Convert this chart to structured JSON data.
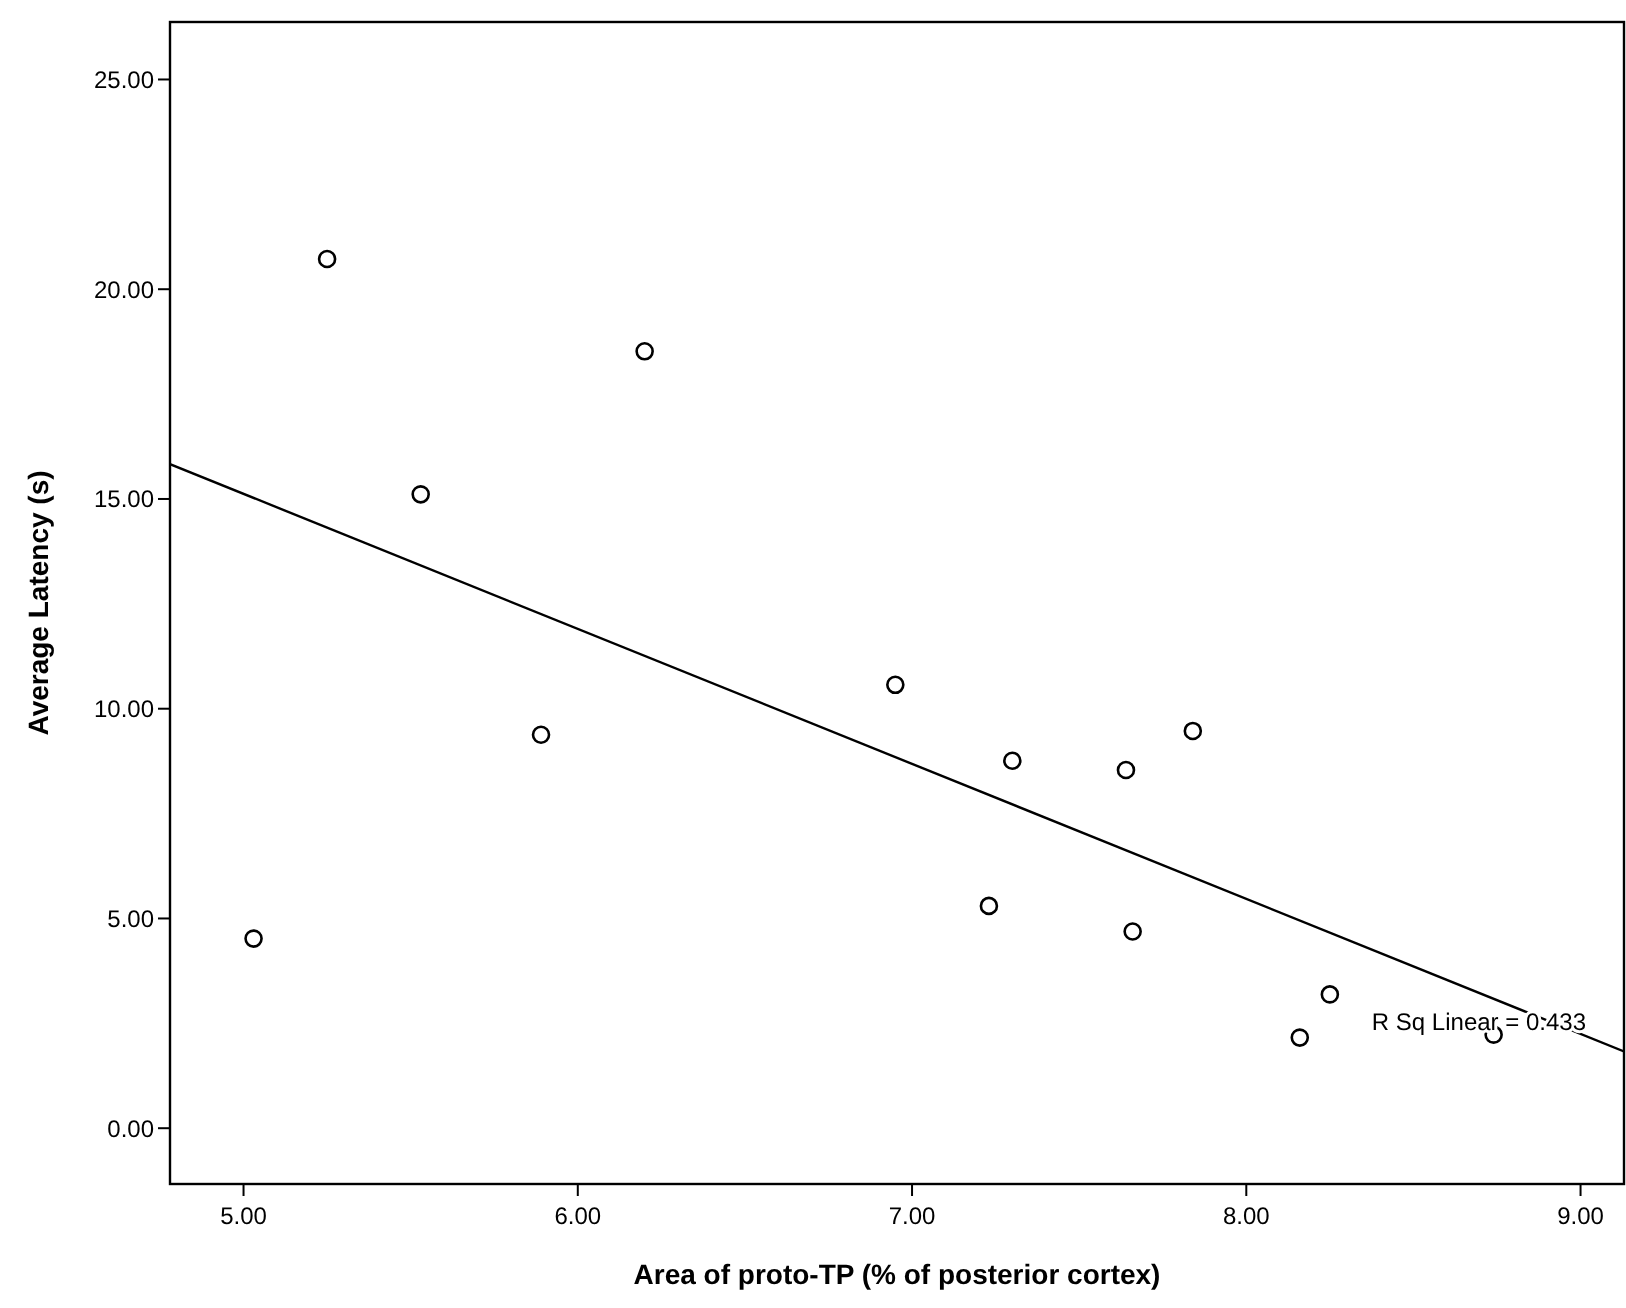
{
  "chart_data": {
    "type": "scatter",
    "xlabel": "Area of proto-TP (% of posterior cortex)",
    "ylabel": "Average Latency (s)",
    "xlim": [
      4.78,
      9.13
    ],
    "ylim": [
      -1.33,
      26.37
    ],
    "xticks": [
      {
        "value": 5,
        "label": "5.00"
      },
      {
        "value": 6,
        "label": "6.00"
      },
      {
        "value": 7,
        "label": "7.00"
      },
      {
        "value": 8,
        "label": "8.00"
      },
      {
        "value": 9,
        "label": "9.00"
      }
    ],
    "yticks": [
      {
        "value": 0,
        "label": "0.00"
      },
      {
        "value": 5,
        "label": "5.00"
      },
      {
        "value": 10,
        "label": "10.00"
      },
      {
        "value": 15,
        "label": "15.00"
      },
      {
        "value": 20,
        "label": "20.00"
      },
      {
        "value": 25,
        "label": "25.00"
      }
    ],
    "grid": false,
    "series": [
      {
        "marker": "circle",
        "color": "#000000",
        "x": [
          5.25,
          6.2,
          5.53,
          5.89,
          5.03,
          6.95,
          7.3,
          7.23,
          7.64,
          7.84,
          7.66,
          8.25,
          8.16,
          8.74
        ],
        "values": [
          20.72,
          18.52,
          15.11,
          9.38,
          4.52,
          10.57,
          8.76,
          5.3,
          8.54,
          9.47,
          4.69,
          3.19,
          2.16,
          2.23
        ]
      },
      {
        "type": "line",
        "color": "#000000",
        "x": [
          4.78,
          9.13
        ],
        "values": [
          15.83,
          1.83
        ]
      }
    ],
    "annotations": [
      "R Sq Linear = 0.433"
    ]
  }
}
